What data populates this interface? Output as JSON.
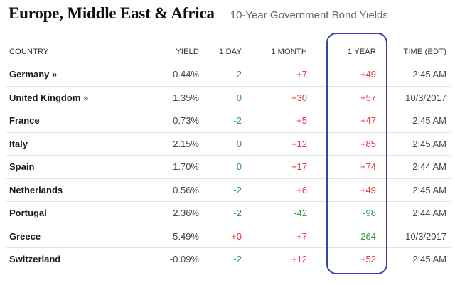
{
  "header": {
    "title": "Europe, Middle East & Africa",
    "subtitle": "10-Year Government Bond Yields"
  },
  "table": {
    "columns": [
      "COUNTRY",
      "YIELD",
      "1 DAY",
      "1 MONTH",
      "1 YEAR",
      "TIME (EDT)"
    ],
    "rows": [
      {
        "country": "Germany »",
        "yield": "0.44%",
        "day": "-2",
        "month": "+7",
        "year": "+49",
        "time": "2:45 AM"
      },
      {
        "country": "United Kingdom »",
        "yield": "1.35%",
        "day": "0",
        "month": "+30",
        "year": "+57",
        "time": "10/3/2017"
      },
      {
        "country": "France",
        "yield": "0.73%",
        "day": "-2",
        "month": "+5",
        "year": "+47",
        "time": "2:45 AM"
      },
      {
        "country": "Italy",
        "yield": "2.15%",
        "day": "0",
        "month": "+12",
        "year": "+85",
        "time": "2:45 AM"
      },
      {
        "country": "Spain",
        "yield": "1.70%",
        "day": "0",
        "month": "+17",
        "year": "+74",
        "time": "2:44 AM"
      },
      {
        "country": "Netherlands",
        "yield": "0.56%",
        "day": "-2",
        "month": "+6",
        "year": "+49",
        "time": "2:45 AM"
      },
      {
        "country": "Portugal",
        "yield": "2.36%",
        "day": "-2",
        "month": "-42",
        "year": "-98",
        "time": "2:44 AM"
      },
      {
        "country": "Greece",
        "yield": "5.49%",
        "day": "+0",
        "month": "+7",
        "year": "-264",
        "time": "10/3/2017"
      },
      {
        "country": "Switzerland",
        "yield": "-0.09%",
        "day": "-2",
        "month": "+12",
        "year": "+52",
        "time": "2:45 AM"
      }
    ]
  },
  "colors": {
    "positive": "#e8313a",
    "negative": "#2aa14a",
    "neutral": "#2aa14a",
    "highlight_border": "#3a42a8"
  }
}
